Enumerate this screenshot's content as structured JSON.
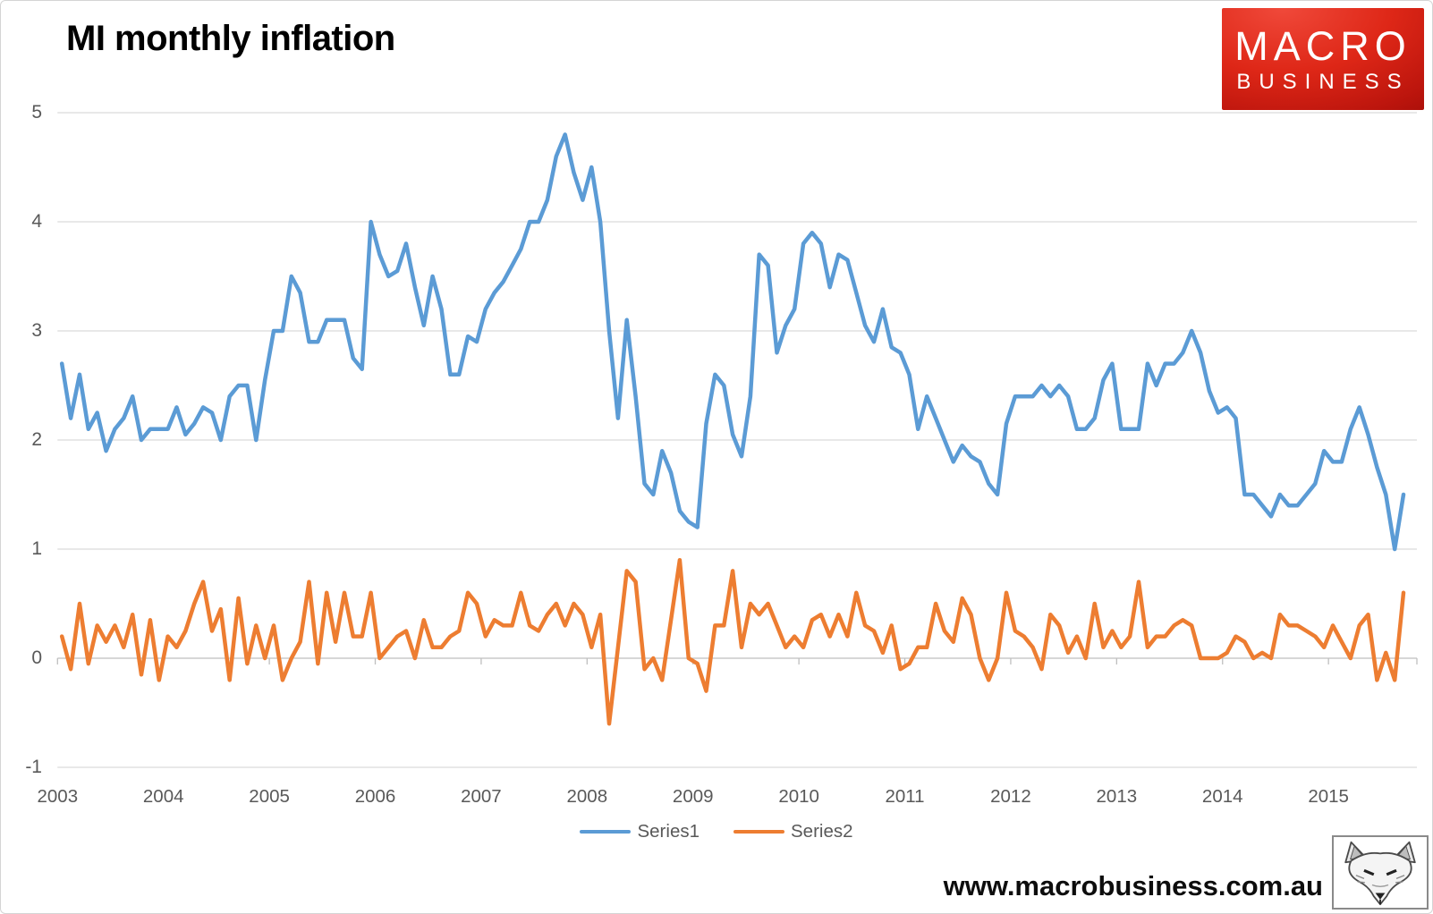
{
  "header": {
    "title": "MI monthly inflation"
  },
  "logo": {
    "line1": "MACRO",
    "line2": "BUSINESS",
    "bg_color": "#cf1c10"
  },
  "footer": {
    "url": "www.macrobusiness.com.au",
    "wolf_icon": "fox-sketch"
  },
  "chart_data": {
    "type": "line",
    "title": "MI monthly inflation",
    "x_unit": "month",
    "x_year_labels": [
      "2003",
      "2004",
      "2005",
      "2006",
      "2007",
      "2008",
      "2009",
      "2010",
      "2011",
      "2012",
      "2013",
      "2014",
      "2015"
    ],
    "y_ticks": [
      5,
      4,
      3,
      2,
      1,
      0,
      -1
    ],
    "ylim": [
      -1,
      5
    ],
    "grid": "horizontal",
    "legend_position": "bottom",
    "colors": {
      "grid": "#d9d9d9",
      "axis": "#bfbfbf",
      "labels": "#595959"
    },
    "series": [
      {
        "name": "Series1",
        "color": "#5B9BD5",
        "values": [
          2.7,
          2.2,
          2.6,
          2.1,
          2.25,
          1.9,
          2.1,
          2.2,
          2.4,
          2.0,
          2.1,
          2.1,
          2.1,
          2.3,
          2.05,
          2.15,
          2.3,
          2.25,
          2.0,
          2.4,
          2.5,
          2.5,
          2.0,
          2.55,
          3.0,
          3.0,
          3.5,
          3.35,
          2.9,
          2.9,
          3.1,
          3.1,
          3.1,
          2.75,
          2.65,
          4.0,
          3.7,
          3.5,
          3.55,
          3.8,
          3.4,
          3.05,
          3.5,
          3.2,
          2.6,
          2.6,
          2.95,
          2.9,
          3.2,
          3.35,
          3.45,
          3.6,
          3.75,
          4.0,
          4.0,
          4.2,
          4.6,
          4.8,
          4.45,
          4.2,
          4.5,
          4.0,
          3.0,
          2.2,
          3.1,
          2.4,
          1.6,
          1.5,
          1.9,
          1.7,
          1.35,
          1.25,
          1.2,
          2.15,
          2.6,
          2.5,
          2.05,
          1.85,
          2.4,
          3.7,
          3.6,
          2.8,
          3.05,
          3.2,
          3.8,
          3.9,
          3.8,
          3.4,
          3.7,
          3.65,
          3.35,
          3.05,
          2.9,
          3.2,
          2.85,
          2.8,
          2.6,
          2.1,
          2.4,
          2.2,
          2.0,
          1.8,
          1.95,
          1.85,
          1.8,
          1.6,
          1.5,
          2.15,
          2.4,
          2.4,
          2.4,
          2.5,
          2.4,
          2.5,
          2.4,
          2.1,
          2.1,
          2.2,
          2.55,
          2.7,
          2.1,
          2.1,
          2.1,
          2.7,
          2.5,
          2.7,
          2.7,
          2.8,
          3.0,
          2.8,
          2.45,
          2.25,
          2.3,
          2.2,
          1.5,
          1.5,
          1.4,
          1.3,
          1.5,
          1.4,
          1.4,
          1.5,
          1.6,
          1.9,
          1.8,
          1.8,
          2.1,
          2.3,
          2.05,
          1.75,
          1.5,
          1.0,
          1.5
        ]
      },
      {
        "name": "Series2",
        "color": "#ED7D31",
        "values": [
          0.2,
          -0.1,
          0.5,
          -0.05,
          0.3,
          0.15,
          0.3,
          0.1,
          0.4,
          -0.15,
          0.35,
          -0.2,
          0.2,
          0.1,
          0.25,
          0.5,
          0.7,
          0.25,
          0.45,
          -0.2,
          0.55,
          -0.05,
          0.3,
          0.0,
          0.3,
          -0.2,
          0.0,
          0.15,
          0.7,
          -0.05,
          0.6,
          0.15,
          0.6,
          0.2,
          0.2,
          0.6,
          0.0,
          0.1,
          0.2,
          0.25,
          0.0,
          0.35,
          0.1,
          0.1,
          0.2,
          0.25,
          0.6,
          0.5,
          0.2,
          0.35,
          0.3,
          0.3,
          0.6,
          0.3,
          0.25,
          0.4,
          0.5,
          0.3,
          0.5,
          0.4,
          0.1,
          0.4,
          -0.6,
          0.1,
          0.8,
          0.7,
          -0.1,
          0.0,
          -0.2,
          0.35,
          0.9,
          0.0,
          -0.05,
          -0.3,
          0.3,
          0.3,
          0.8,
          0.1,
          0.5,
          0.4,
          0.5,
          0.3,
          0.1,
          0.2,
          0.1,
          0.35,
          0.4,
          0.2,
          0.4,
          0.2,
          0.6,
          0.3,
          0.25,
          0.05,
          0.3,
          -0.1,
          -0.05,
          0.1,
          0.1,
          0.5,
          0.25,
          0.15,
          0.55,
          0.4,
          0.0,
          -0.2,
          0.0,
          0.6,
          0.25,
          0.2,
          0.1,
          -0.1,
          0.4,
          0.3,
          0.05,
          0.2,
          0.0,
          0.5,
          0.1,
          0.25,
          0.1,
          0.2,
          0.7,
          0.1,
          0.2,
          0.2,
          0.3,
          0.35,
          0.3,
          0.0,
          0.0,
          0.0,
          0.05,
          0.2,
          0.15,
          0.0,
          0.05,
          0.0,
          0.4,
          0.3,
          0.3,
          0.25,
          0.2,
          0.1,
          0.3,
          0.15,
          0.0,
          0.3,
          0.4,
          -0.2,
          0.05,
          -0.2,
          0.6
        ]
      }
    ]
  }
}
